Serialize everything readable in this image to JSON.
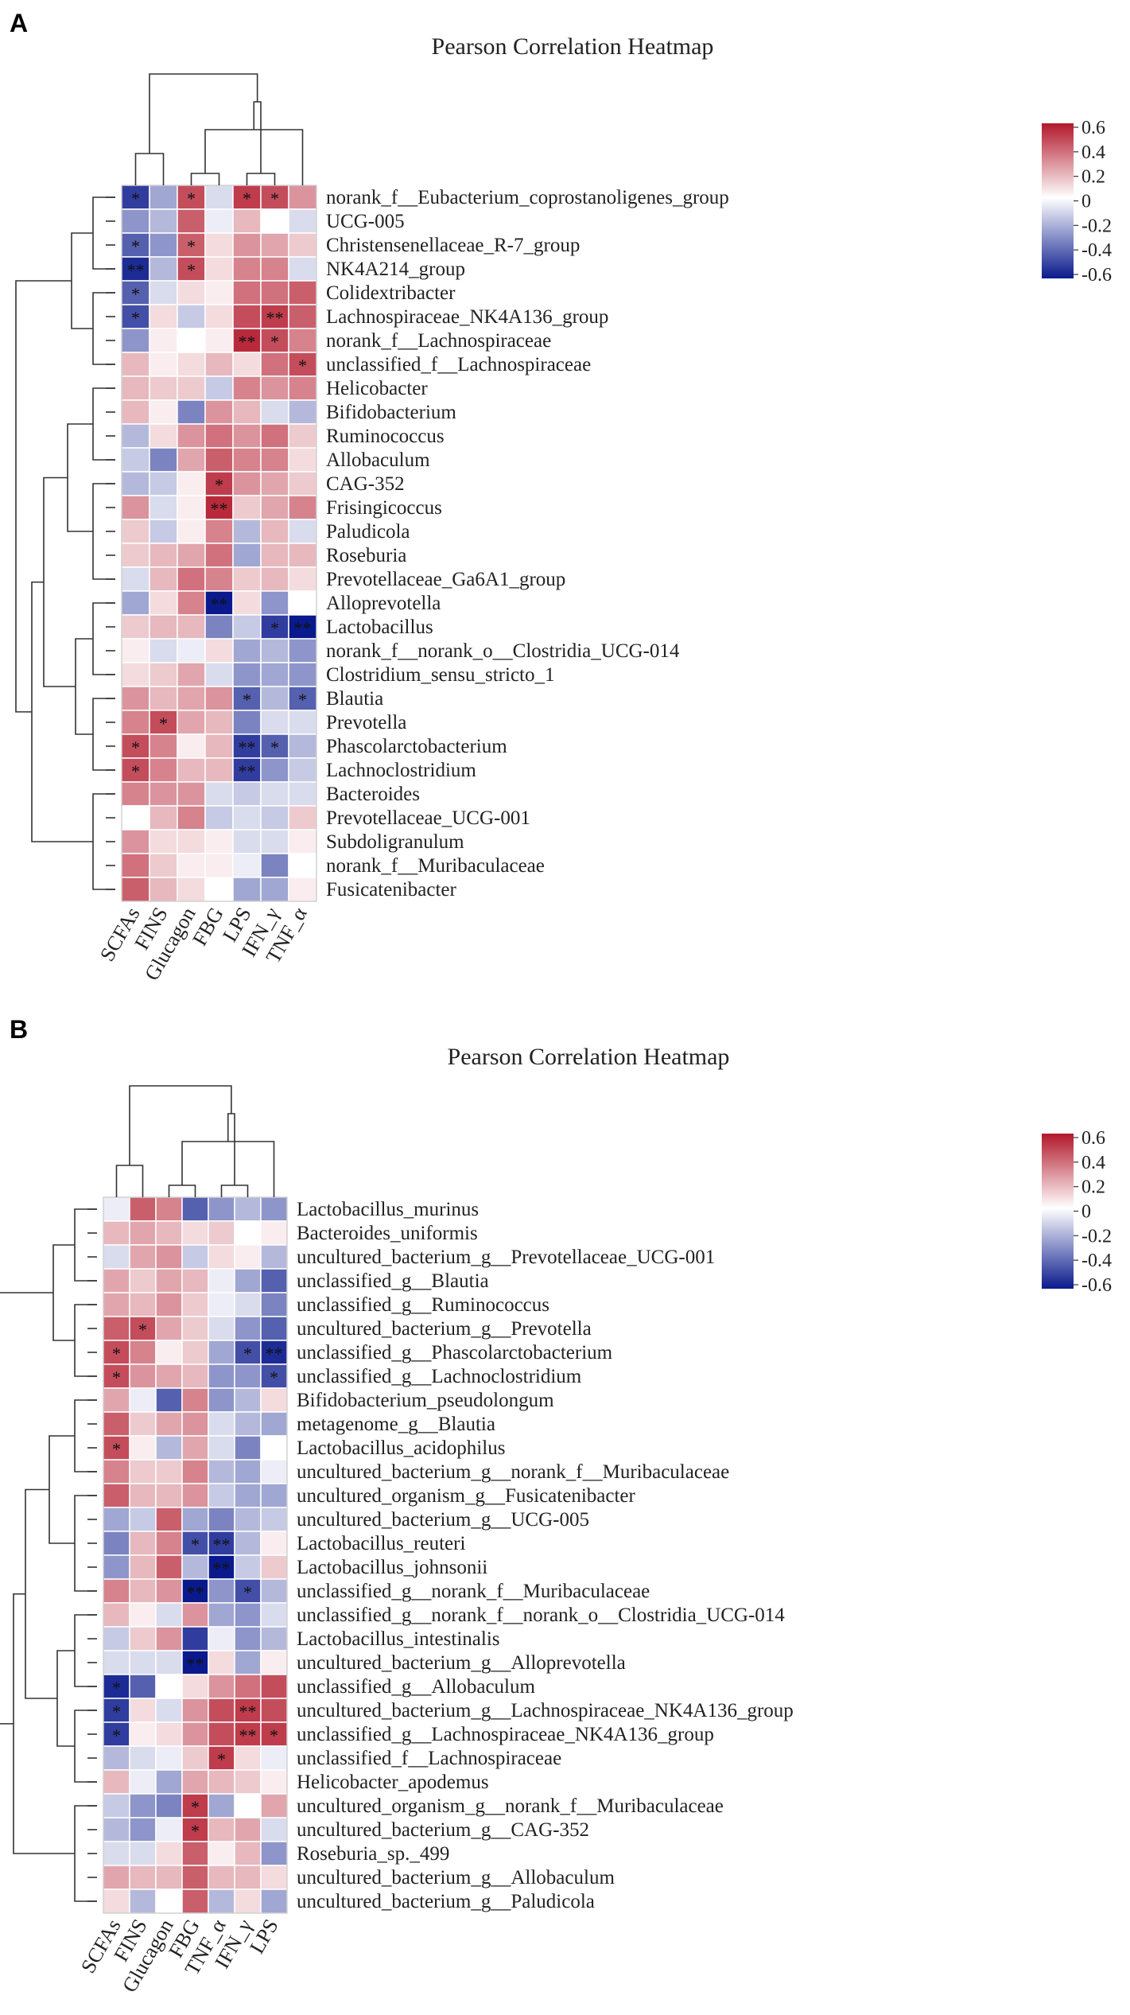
{
  "colors": {
    "high": "#B2182B",
    "mid": "#FFFFFF",
    "low": "#0A1A8C",
    "grid": "#ffffff"
  },
  "chart_data": [
    {
      "panel_label": "A",
      "type": "heatmap",
      "title": "Pearson Correlation Heatmap",
      "columns": [
        "SCFAs",
        "FINS",
        "Glucagon",
        "FBG",
        "LPS",
        "IFN_γ",
        "TNF_α"
      ],
      "rows": [
        "norank_f__Eubacterium_coprostanoligenes_group",
        "UCG-005",
        "Christensenellaceae_R-7_group",
        "NK4A214_group",
        "Colidextribacter",
        "Lachnospiraceae_NK4A136_group",
        "norank_f__Lachnospiraceae",
        "unclassified_f__Lachnospiraceae",
        "Helicobacter",
        "Bifidobacterium",
        "Ruminococcus",
        "Allobaculum",
        "CAG-352",
        "Frisingicoccus",
        "Paludicola",
        "Roseburia",
        "Prevotellaceae_Ga6A1_group",
        "Alloprevotella",
        "Lactobacillus",
        "norank_f__norank_o__Clostridia_UCG-014",
        "Clostridium_sensu_stricto_1",
        "Blautia",
        "Prevotella",
        "Phascolarctobacterium",
        "Lachnoclostridium",
        "Bacteroides",
        "Prevotellaceae_UCG-001",
        "Subdoligranulum",
        "norank_f__Muribaculaceae",
        "Fusicatenibacter"
      ],
      "values": [
        [
          -0.55,
          -0.25,
          0.5,
          -0.1,
          0.55,
          0.5,
          0.3
        ],
        [
          -0.3,
          -0.2,
          0.45,
          -0.05,
          0.2,
          0.0,
          -0.1
        ],
        [
          -0.45,
          -0.3,
          0.45,
          0.1,
          0.3,
          0.25,
          0.15
        ],
        [
          -0.6,
          -0.2,
          0.5,
          0.1,
          0.35,
          0.35,
          -0.1
        ],
        [
          -0.45,
          -0.1,
          0.1,
          0.05,
          0.4,
          0.4,
          0.45
        ],
        [
          -0.5,
          0.1,
          -0.15,
          0.1,
          0.5,
          0.55,
          0.45
        ],
        [
          -0.3,
          0.05,
          0.0,
          0.05,
          0.6,
          0.5,
          0.35
        ],
        [
          0.2,
          0.05,
          0.1,
          0.2,
          0.1,
          0.4,
          0.5
        ],
        [
          0.2,
          0.15,
          0.15,
          -0.15,
          0.35,
          0.3,
          0.35
        ],
        [
          0.2,
          0.05,
          -0.35,
          0.3,
          0.2,
          -0.1,
          -0.2
        ],
        [
          -0.2,
          0.1,
          0.3,
          0.4,
          0.3,
          0.4,
          0.15
        ],
        [
          -0.15,
          -0.35,
          0.25,
          0.45,
          0.35,
          0.35,
          0.1
        ],
        [
          -0.2,
          -0.15,
          0.05,
          0.55,
          0.3,
          0.25,
          0.15
        ],
        [
          0.3,
          -0.1,
          0.05,
          0.6,
          0.15,
          0.25,
          0.35
        ],
        [
          0.15,
          -0.15,
          0.05,
          0.35,
          -0.2,
          0.2,
          -0.1
        ],
        [
          0.15,
          0.2,
          0.25,
          0.4,
          -0.25,
          0.2,
          0.2
        ],
        [
          -0.1,
          0.2,
          0.4,
          0.35,
          0.15,
          0.2,
          0.1
        ],
        [
          -0.25,
          0.1,
          0.35,
          -0.65,
          0.1,
          -0.3,
          0.0
        ],
        [
          0.15,
          0.2,
          0.2,
          -0.35,
          -0.15,
          -0.55,
          -0.65
        ],
        [
          0.05,
          -0.1,
          -0.05,
          0.1,
          -0.25,
          -0.2,
          -0.3
        ],
        [
          0.1,
          0.15,
          0.25,
          -0.1,
          -0.3,
          -0.25,
          -0.3
        ],
        [
          0.3,
          0.2,
          0.25,
          0.3,
          -0.45,
          -0.2,
          -0.45
        ],
        [
          0.35,
          0.5,
          0.25,
          0.2,
          -0.35,
          -0.1,
          -0.1
        ],
        [
          0.5,
          0.35,
          0.05,
          0.2,
          -0.55,
          -0.45,
          -0.2
        ],
        [
          0.5,
          0.35,
          0.2,
          0.2,
          -0.55,
          -0.3,
          -0.15
        ],
        [
          0.35,
          0.3,
          0.3,
          -0.1,
          -0.15,
          -0.1,
          -0.1
        ],
        [
          0.0,
          0.2,
          0.35,
          -0.15,
          -0.1,
          -0.15,
          0.15
        ],
        [
          0.3,
          0.1,
          0.1,
          0.05,
          -0.1,
          -0.1,
          0.05
        ],
        [
          0.4,
          0.15,
          0.05,
          0.05,
          -0.05,
          -0.35,
          0.0
        ],
        [
          0.45,
          0.2,
          0.1,
          0.0,
          -0.25,
          -0.25,
          0.05
        ]
      ],
      "stars": [
        [
          "*",
          "",
          "*",
          "",
          "*",
          "*",
          ""
        ],
        [
          "",
          "",
          "",
          "",
          "",
          "",
          ""
        ],
        [
          "*",
          "",
          "*",
          "",
          "",
          "",
          ""
        ],
        [
          "**",
          "",
          "*",
          "",
          "",
          "",
          ""
        ],
        [
          "*",
          "",
          "",
          "",
          "",
          "",
          ""
        ],
        [
          "*",
          "",
          "",
          "",
          "",
          "**",
          ""
        ],
        [
          "",
          "",
          "",
          "",
          "**",
          "*",
          ""
        ],
        [
          "",
          "",
          "",
          "",
          "",
          "",
          "*"
        ],
        [
          "",
          "",
          "",
          "",
          "",
          "",
          ""
        ],
        [
          "",
          "",
          "",
          "",
          "",
          "",
          ""
        ],
        [
          "",
          "",
          "",
          "",
          "",
          "",
          ""
        ],
        [
          "",
          "",
          "",
          "",
          "",
          "",
          ""
        ],
        [
          "",
          "",
          "",
          "*",
          "",
          "",
          ""
        ],
        [
          "",
          "",
          "",
          "**",
          "",
          "",
          ""
        ],
        [
          "",
          "",
          "",
          "",
          "",
          "",
          ""
        ],
        [
          "",
          "",
          "",
          "",
          "",
          "",
          ""
        ],
        [
          "",
          "",
          "",
          "",
          "",
          "",
          ""
        ],
        [
          "",
          "",
          "",
          "**",
          "",
          "",
          ""
        ],
        [
          "",
          "",
          "",
          "",
          "",
          "*",
          "**"
        ],
        [
          "",
          "",
          "",
          "",
          "",
          "",
          ""
        ],
        [
          "",
          "",
          "",
          "",
          "",
          "",
          ""
        ],
        [
          "",
          "",
          "",
          "",
          "*",
          "",
          "*"
        ],
        [
          "",
          "*",
          "",
          "",
          "",
          "",
          ""
        ],
        [
          "*",
          "",
          "",
          "",
          "**",
          "*",
          ""
        ],
        [
          "*",
          "",
          "",
          "",
          "**",
          "",
          ""
        ],
        [
          "",
          "",
          "",
          "",
          "",
          "",
          ""
        ],
        [
          "",
          "",
          "",
          "",
          "",
          "",
          ""
        ],
        [
          "",
          "",
          "",
          "",
          "",
          "",
          ""
        ],
        [
          "",
          "",
          "",
          "",
          "",
          "",
          ""
        ],
        [
          "",
          "",
          "",
          "",
          "",
          "",
          ""
        ]
      ],
      "colorbar": {
        "ticks": [
          "0.6",
          "0.4",
          "0.2",
          "0",
          "-0.2",
          "-0.4",
          "-0.6"
        ],
        "range": [
          -0.7,
          0.65
        ]
      }
    },
    {
      "panel_label": "B",
      "type": "heatmap",
      "title": "Pearson Correlation Heatmap",
      "columns": [
        "SCFAs",
        "FINS",
        "Glucagon",
        "FBG",
        "TNF_α",
        "IFN_γ",
        "LPS"
      ],
      "rows": [
        "Lactobacillus_murinus",
        "Bacteroides_uniformis",
        "uncultured_bacterium_g__Prevotellaceae_UCG-001",
        "unclassified_g__Blautia",
        "unclassified_g__Ruminococcus",
        "uncultured_bacterium_g__Prevotella",
        "unclassified_g__Phascolarctobacterium",
        "unclassified_g__Lachnoclostridium",
        "Bifidobacterium_pseudolongum",
        "metagenome_g__Blautia",
        "Lactobacillus_acidophilus",
        "uncultured_bacterium_g__norank_f__Muribaculaceae",
        "uncultured_organism_g__Fusicatenibacter",
        "uncultured_bacterium_g__UCG-005",
        "Lactobacillus_reuteri",
        "Lactobacillus_johnsonii",
        "unclassified_g__norank_f__Muribaculaceae",
        "unclassified_g__norank_f__norank_o__Clostridia_UCG-014",
        "Lactobacillus_intestinalis",
        "uncultured_bacterium_g__Alloprevotella",
        "unclassified_g__Allobaculum",
        "uncultured_bacterium_g__Lachnospiraceae_NK4A136_group",
        "unclassified_g__Lachnospiraceae_NK4A136_group",
        "unclassified_f__Lachnospiraceae",
        "Helicobacter_apodemus",
        "uncultured_organism_g__norank_f__Muribaculaceae",
        "uncultured_bacterium_g__CAG-352",
        "Roseburia_sp._499",
        "uncultured_bacterium_g__Allobaculum",
        "uncultured_bacterium_g__Paludicola"
      ],
      "values": [
        [
          -0.05,
          0.45,
          0.35,
          -0.45,
          -0.3,
          -0.2,
          -0.3
        ],
        [
          0.2,
          0.25,
          0.2,
          0.1,
          0.15,
          0.0,
          0.05
        ],
        [
          -0.1,
          0.25,
          0.3,
          -0.15,
          0.1,
          0.05,
          -0.2
        ],
        [
          0.25,
          0.15,
          0.25,
          0.2,
          -0.05,
          -0.25,
          -0.45
        ],
        [
          0.25,
          0.2,
          0.3,
          0.15,
          -0.05,
          -0.1,
          -0.35
        ],
        [
          0.45,
          0.5,
          0.25,
          0.15,
          -0.1,
          -0.3,
          -0.45
        ],
        [
          0.5,
          0.35,
          0.05,
          0.15,
          -0.25,
          -0.5,
          -0.6
        ],
        [
          0.5,
          0.3,
          0.25,
          0.2,
          -0.3,
          -0.3,
          -0.5
        ],
        [
          0.25,
          -0.05,
          -0.45,
          0.35,
          -0.3,
          -0.2,
          0.1
        ],
        [
          0.45,
          0.15,
          0.25,
          0.3,
          -0.1,
          -0.2,
          -0.25
        ],
        [
          0.5,
          0.05,
          -0.2,
          0.25,
          -0.1,
          -0.35,
          0.0
        ],
        [
          0.35,
          0.15,
          0.15,
          0.35,
          -0.2,
          -0.25,
          -0.05
        ],
        [
          0.45,
          0.2,
          0.2,
          0.3,
          -0.15,
          -0.25,
          -0.25
        ],
        [
          -0.25,
          -0.15,
          0.45,
          -0.25,
          -0.35,
          -0.2,
          -0.15
        ],
        [
          -0.35,
          0.2,
          0.35,
          -0.5,
          -0.55,
          -0.2,
          0.05
        ],
        [
          -0.3,
          0.2,
          0.45,
          -0.2,
          -0.65,
          -0.15,
          0.15
        ],
        [
          0.35,
          0.2,
          0.3,
          -0.7,
          -0.3,
          -0.5,
          -0.2
        ],
        [
          0.2,
          0.05,
          -0.1,
          0.3,
          -0.25,
          -0.3,
          -0.1
        ],
        [
          -0.15,
          0.15,
          0.3,
          -0.55,
          -0.05,
          -0.3,
          -0.2
        ],
        [
          -0.1,
          -0.1,
          -0.1,
          -0.65,
          0.1,
          -0.25,
          0.05
        ],
        [
          -0.6,
          -0.45,
          0.0,
          0.1,
          0.3,
          0.4,
          0.5
        ],
        [
          -0.55,
          0.1,
          -0.1,
          0.3,
          0.5,
          0.55,
          0.5
        ],
        [
          -0.55,
          0.05,
          0.1,
          0.3,
          0.5,
          0.55,
          0.55
        ],
        [
          -0.2,
          -0.1,
          -0.05,
          0.15,
          0.55,
          0.1,
          -0.05
        ],
        [
          0.2,
          -0.05,
          -0.25,
          0.25,
          0.2,
          0.15,
          0.05
        ],
        [
          -0.15,
          -0.3,
          -0.35,
          0.55,
          -0.25,
          0.0,
          0.25
        ],
        [
          -0.2,
          -0.3,
          -0.05,
          0.55,
          0.2,
          0.25,
          -0.1
        ],
        [
          -0.1,
          -0.1,
          0.1,
          0.45,
          0.05,
          0.2,
          -0.3
        ],
        [
          0.25,
          0.2,
          0.2,
          0.45,
          0.2,
          0.2,
          0.1
        ],
        [
          0.1,
          -0.2,
          0.0,
          0.45,
          -0.2,
          0.1,
          -0.25
        ]
      ],
      "stars": [
        [
          "",
          "",
          "",
          "",
          "",
          "",
          ""
        ],
        [
          "",
          "",
          "",
          "",
          "",
          "",
          ""
        ],
        [
          "",
          "",
          "",
          "",
          "",
          "",
          ""
        ],
        [
          "",
          "",
          "",
          "",
          "",
          "",
          ""
        ],
        [
          "",
          "",
          "",
          "",
          "",
          "",
          ""
        ],
        [
          "",
          "*",
          "",
          "",
          "",
          "",
          ""
        ],
        [
          "*",
          "",
          "",
          "",
          "",
          "*",
          "**"
        ],
        [
          "*",
          "",
          "",
          "",
          "",
          "",
          "*"
        ],
        [
          "",
          "",
          "",
          "",
          "",
          "",
          ""
        ],
        [
          "",
          "",
          "",
          "",
          "",
          "",
          ""
        ],
        [
          "*",
          "",
          "",
          "",
          "",
          "",
          ""
        ],
        [
          "",
          "",
          "",
          "",
          "",
          "",
          ""
        ],
        [
          "",
          "",
          "",
          "",
          "",
          "",
          ""
        ],
        [
          "",
          "",
          "",
          "",
          "",
          "",
          ""
        ],
        [
          "",
          "",
          "",
          "*",
          "**",
          "",
          ""
        ],
        [
          "",
          "",
          "",
          "",
          "**",
          "",
          ""
        ],
        [
          "",
          "",
          "",
          "**",
          "",
          "*",
          ""
        ],
        [
          "",
          "",
          "",
          "",
          "",
          "",
          ""
        ],
        [
          "",
          "",
          "",
          "",
          "",
          "",
          ""
        ],
        [
          "",
          "",
          "",
          "**",
          "",
          "",
          ""
        ],
        [
          "*",
          "",
          "",
          "",
          "",
          "",
          ""
        ],
        [
          "*",
          "",
          "",
          "",
          "",
          "**",
          ""
        ],
        [
          "*",
          "",
          "",
          "",
          "",
          "**",
          "*"
        ],
        [
          "",
          "",
          "",
          "",
          "*",
          "",
          ""
        ],
        [
          "",
          "",
          "",
          "",
          "",
          "",
          ""
        ],
        [
          "",
          "",
          "",
          "*",
          "",
          "",
          ""
        ],
        [
          "",
          "",
          "",
          "*",
          "",
          "",
          ""
        ],
        [
          "",
          "",
          "",
          "",
          "",
          "",
          ""
        ],
        [
          "",
          "",
          "",
          "",
          "",
          "",
          ""
        ],
        [
          "",
          "",
          "",
          "",
          "",
          "",
          ""
        ]
      ],
      "colorbar": {
        "ticks": [
          "0.6",
          "0.4",
          "0.2",
          "0",
          "-0.2",
          "-0.4",
          "-0.6"
        ],
        "range": [
          -0.7,
          0.65
        ]
      }
    }
  ]
}
